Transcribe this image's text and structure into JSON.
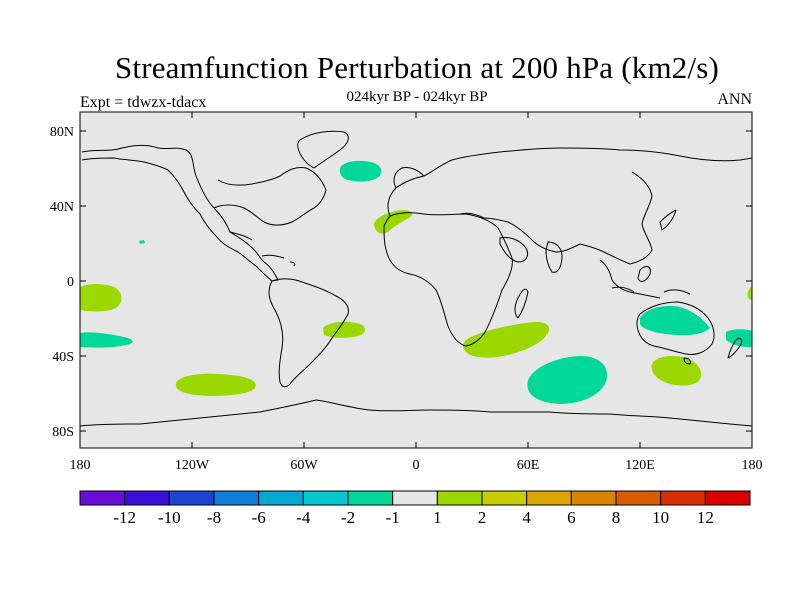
{
  "header": {
    "title": "Streamfunction Perturbation at 200 hPa (km2/s)",
    "subtitle": "024kyr BP - 024kyr BP",
    "left_note": "Expt = tdwzx-tdacx",
    "right_note": "ANN"
  },
  "map": {
    "background_color": "#e6e6e6",
    "lat_ticks": [
      "80N",
      "40N",
      "0",
      "40S",
      "80S"
    ],
    "lon_ticks": [
      "180",
      "120W",
      "60W",
      "0",
      "60E",
      "120E",
      "180"
    ]
  },
  "colorbar": {
    "colors": [
      "#6a0dd8",
      "#3a10d8",
      "#1c44d4",
      "#0e7ed8",
      "#08a8d4",
      "#06c8d0",
      "#00d89a",
      "#e6e6e6",
      "#9ad800",
      "#c8cc00",
      "#d8a800",
      "#d88400",
      "#d85c00",
      "#d83000",
      "#d80000"
    ],
    "labels": [
      "-12",
      "-10",
      "-8",
      "-6",
      "-4",
      "-2",
      "-1",
      "1",
      "2",
      "4",
      "6",
      "8",
      "10",
      "12"
    ]
  },
  "anomalies": [
    {
      "label": "North Atlantic negative",
      "color": "#00d89a"
    },
    {
      "label": "Northwest Africa positive",
      "color": "#9ad800"
    },
    {
      "label": "Central Pacific positive",
      "color": "#9ad800"
    },
    {
      "label": "South Pacific negative",
      "color": "#00d89a"
    },
    {
      "label": "Southeast Pacific positive",
      "color": "#9ad800"
    },
    {
      "label": "South Atlantic positive",
      "color": "#9ad800"
    },
    {
      "label": "South Africa positive",
      "color": "#9ad800"
    },
    {
      "label": "South Indian Ocean negative",
      "color": "#00d89a"
    },
    {
      "label": "Australia negative",
      "color": "#00d89a"
    },
    {
      "label": "South Australia positive",
      "color": "#9ad800"
    },
    {
      "label": "New Zealand negative",
      "color": "#00d89a"
    }
  ]
}
